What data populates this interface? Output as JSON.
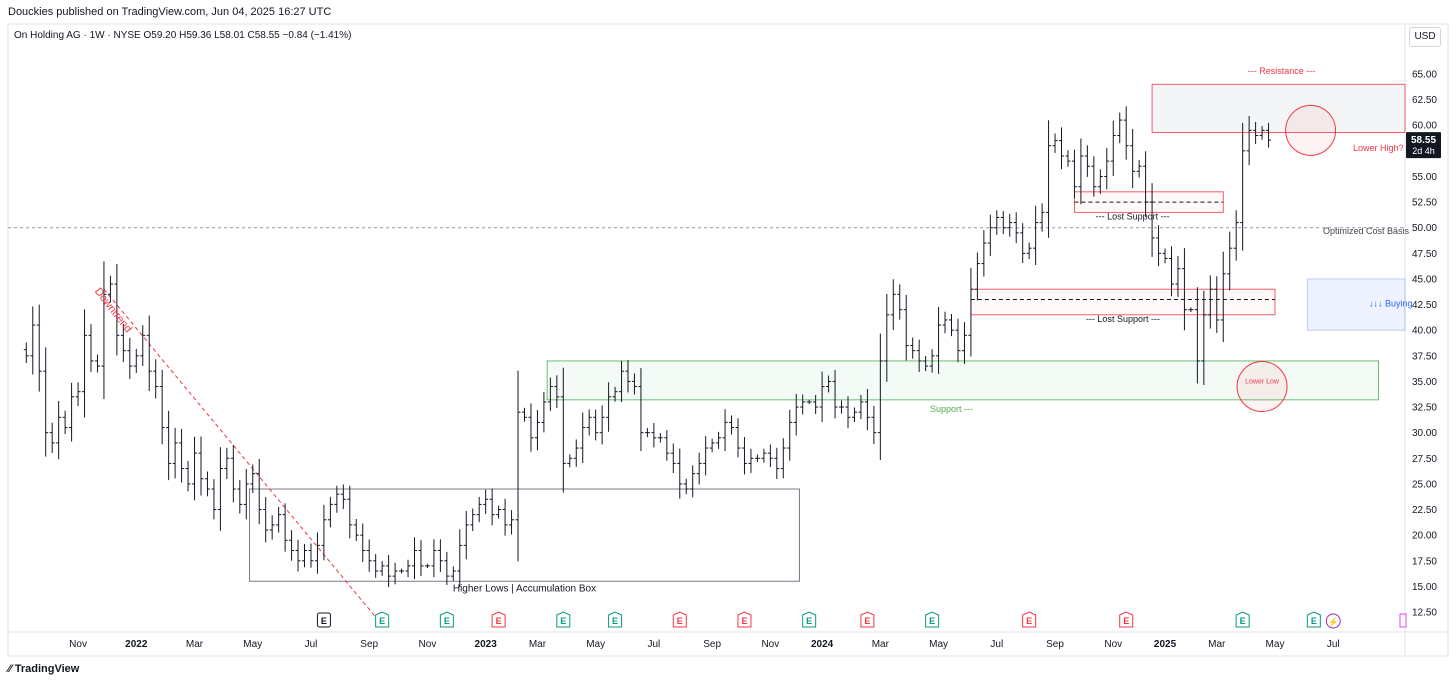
{
  "header": {
    "published": "Douckies published on TradingView.com, Jun 04, 2025 16:27 UTC"
  },
  "symbol": {
    "name": "On Holding AG · 1W · NYSE",
    "open": "O59.20",
    "high": "H59.36",
    "low": "L58.01",
    "close": "C58.55",
    "change": "−0.84 (−1.41%)"
  },
  "currency_label": "USD",
  "price_badge": {
    "price": "58.55",
    "countdown": "2d 4h"
  },
  "footer": {
    "logo_text": "TradingView"
  },
  "colors": {
    "bar": "#131722",
    "resistance": "#f23645",
    "support": "#4caf50",
    "buying": "#2962ff",
    "earnings_green": "#089981",
    "earnings_red": "#f23645"
  },
  "chart_data": {
    "type": "ohlc-bar",
    "interval": "1W",
    "y_ticks": [
      "12.50",
      "15.00",
      "17.50",
      "20.00",
      "22.50",
      "25.00",
      "27.50",
      "30.00",
      "32.50",
      "35.00",
      "37.50",
      "40.00",
      "42.50",
      "45.00",
      "47.50",
      "50.00",
      "52.50",
      "55.00",
      "57.50",
      "60.00",
      "62.50",
      "65.00"
    ],
    "ylim": [
      11.0,
      68.0
    ],
    "x_ticks": [
      {
        "label": "Nov",
        "idx": 8
      },
      {
        "label": "2022",
        "idx": 17,
        "bold": true
      },
      {
        "label": "Mar",
        "idx": 26
      },
      {
        "label": "May",
        "idx": 35
      },
      {
        "label": "Jul",
        "idx": 44
      },
      {
        "label": "Sep",
        "idx": 53
      },
      {
        "label": "Nov",
        "idx": 62
      },
      {
        "label": "2023",
        "idx": 71,
        "bold": true
      },
      {
        "label": "Mar",
        "idx": 79
      },
      {
        "label": "May",
        "idx": 88
      },
      {
        "label": "Jul",
        "idx": 97
      },
      {
        "label": "Sep",
        "idx": 106
      },
      {
        "label": "Nov",
        "idx": 115
      },
      {
        "label": "2024",
        "idx": 123,
        "bold": true
      },
      {
        "label": "Mar",
        "idx": 132
      },
      {
        "label": "May",
        "idx": 141
      },
      {
        "label": "Jul",
        "idx": 150
      },
      {
        "label": "Sep",
        "idx": 159
      },
      {
        "label": "Nov",
        "idx": 168
      },
      {
        "label": "2025",
        "idx": 176,
        "bold": true
      },
      {
        "label": "Mar",
        "idx": 184
      },
      {
        "label": "May",
        "idx": 193
      },
      {
        "label": "Jul",
        "idx": 202
      }
    ],
    "close_series": [
      37.5,
      40.5,
      36.0,
      30.0,
      29.0,
      31.5,
      30.5,
      33.5,
      34.0,
      39.5,
      37.0,
      36.5,
      43.5,
      44.5,
      39.5,
      38.0,
      36.5,
      37.5,
      39.5,
      36.0,
      34.5,
      30.5,
      27.0,
      29.0,
      26.5,
      25.0,
      28.0,
      25.5,
      24.5,
      22.5,
      26.5,
      27.5,
      24.5,
      23.0,
      25.0,
      26.0,
      22.5,
      20.5,
      21.0,
      22.0,
      19.5,
      18.5,
      17.5,
      18.5,
      17.5,
      19.0,
      21.5,
      23.0,
      24.0,
      23.5,
      21.0,
      20.0,
      18.5,
      17.5,
      16.5,
      17.0,
      16.0,
      16.5,
      16.5,
      17.0,
      18.5,
      17.0,
      17.0,
      18.5,
      17.5,
      16.0,
      16.5,
      19.0,
      21.0,
      22.0,
      23.0,
      23.5,
      22.0,
      22.5,
      21.0,
      21.5,
      32.0,
      31.5,
      29.5,
      31.0,
      33.0,
      34.5,
      33.5,
      27.0,
      27.5,
      28.5,
      30.5,
      31.5,
      30.0,
      31.5,
      33.5,
      34.0,
      36.0,
      35.0,
      34.5,
      30.0,
      30.0,
      29.5,
      29.5,
      28.0,
      27.0,
      25.0,
      24.5,
      26.0,
      27.0,
      28.5,
      29.0,
      29.5,
      31.0,
      30.5,
      28.5,
      27.0,
      27.5,
      27.5,
      28.0,
      27.5,
      26.5,
      28.5,
      31.0,
      32.5,
      33.0,
      33.0,
      32.5,
      34.5,
      35.0,
      32.5,
      32.5,
      31.5,
      32.0,
      33.0,
      31.5,
      30.0,
      37.0,
      41.5,
      43.5,
      42.0,
      38.5,
      38.0,
      37.0,
      36.5,
      37.5,
      40.5,
      41.0,
      40.0,
      38.0,
      39.5,
      44.0,
      46.5,
      48.5,
      50.0,
      51.0,
      50.0,
      50.5,
      49.5,
      47.5,
      48.0,
      50.5,
      51.5,
      58.0,
      58.5,
      57.0,
      56.5,
      54.0,
      57.0,
      56.0,
      54.0,
      55.0,
      56.5,
      59.0,
      60.5,
      58.0,
      55.5,
      56.0,
      52.5,
      49.0,
      47.5,
      47.0,
      44.5,
      46.0,
      42.0,
      42.0,
      37.0,
      41.5,
      44.0,
      41.0,
      45.5,
      48.0,
      50.5,
      57.5,
      59.5,
      59.0,
      59.5,
      58.55
    ],
    "annotations": [
      {
        "text": "Downtrend",
        "kind": "trendline"
      },
      {
        "text": "--- Resistance ---",
        "kind": "zone"
      },
      {
        "text": "Lower High?",
        "kind": "callout"
      },
      {
        "text": "Optimized Cost Basis",
        "kind": "level",
        "price": 50.0
      },
      {
        "text": "--- Lost Support ---",
        "kind": "zone"
      },
      {
        "text": "--- Lost Support ---",
        "kind": "zone"
      },
      {
        "text": "↓↓↓ Buying",
        "kind": "zone"
      },
      {
        "text": "Support ---",
        "kind": "zone"
      },
      {
        "text": "Lower Low",
        "kind": "callout"
      },
      {
        "text": "Higher Lows | Accumulation Box",
        "kind": "box"
      }
    ],
    "earnings": [
      {
        "idx": 46,
        "color": "gray",
        "label": "E"
      },
      {
        "idx": 55,
        "color": "green",
        "label": "E"
      },
      {
        "idx": 65,
        "color": "green",
        "label": "E"
      },
      {
        "idx": 73,
        "color": "red",
        "label": "E"
      },
      {
        "idx": 83,
        "color": "green",
        "label": "E"
      },
      {
        "idx": 91,
        "color": "green",
        "label": "E"
      },
      {
        "idx": 101,
        "color": "red",
        "label": "E"
      },
      {
        "idx": 111,
        "color": "red",
        "label": "E"
      },
      {
        "idx": 121,
        "color": "green",
        "label": "E"
      },
      {
        "idx": 130,
        "color": "red",
        "label": "E"
      },
      {
        "idx": 140,
        "color": "green",
        "label": "E"
      },
      {
        "idx": 155,
        "color": "red",
        "label": "E"
      },
      {
        "idx": 170,
        "color": "red",
        "label": "E"
      },
      {
        "idx": 188,
        "color": "green",
        "label": "E"
      },
      {
        "idx": 199,
        "color": "green",
        "label": "E"
      }
    ]
  }
}
